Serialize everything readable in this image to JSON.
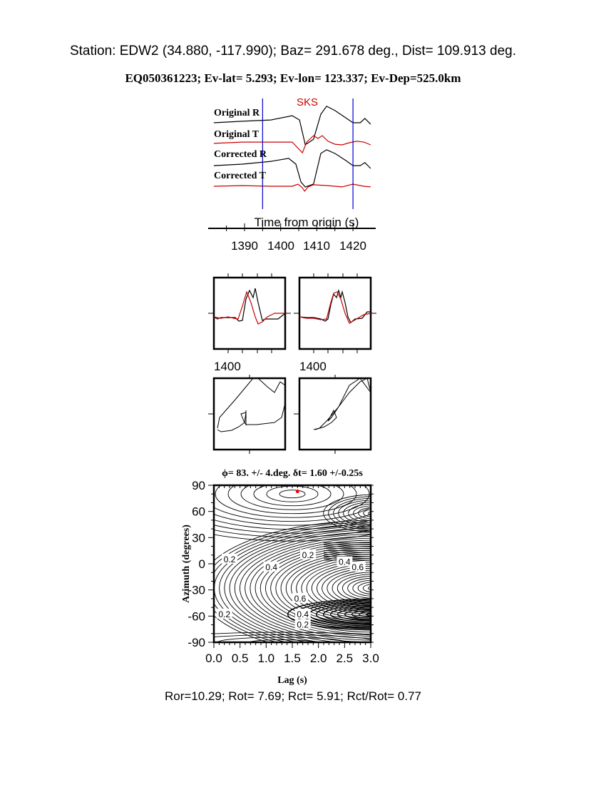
{
  "header": {
    "station_line": "Station: EDW2 (34.880, -117.990); Baz=  291.678 deg., Dist=  109.913 deg.",
    "event_line": "EQ050361223; Ev-lat=   5.293; Ev-lon= 123.337; Ev-Dep=525.0km"
  },
  "colors": {
    "black": "#000000",
    "red": "#cc0000",
    "blue": "#0000cc",
    "marker": "#ff0000"
  },
  "chart_data": [
    {
      "type": "line",
      "name_label": "SKS",
      "xlabel": "Time from origin (s)",
      "xticks": [
        "1390",
        "1400",
        "1410",
        "1420"
      ],
      "xlim": [
        1381.5,
        1425
      ],
      "window_markers": [
        1395,
        1420
      ],
      "series": [
        {
          "name": "Original R",
          "color": "#000000",
          "points": [
            [
              1381.5,
              0
            ],
            [
              1389.4,
              0.07
            ],
            [
              1397.3,
              0.13
            ],
            [
              1403.2,
              0.33
            ],
            [
              1405.2,
              0.13
            ],
            [
              1406.8,
              -1.03
            ],
            [
              1409.1,
              -0.77
            ],
            [
              1411.1,
              0.4
            ],
            [
              1412.7,
              0.77
            ],
            [
              1415,
              0.57
            ],
            [
              1418,
              0.23
            ],
            [
              1420,
              0
            ],
            [
              1422,
              0
            ],
            [
              1423.3,
              0.2
            ],
            [
              1424.9,
              -0.07
            ]
          ]
        },
        {
          "name": "Original T",
          "color": "#cc0000",
          "points": [
            [
              1381.5,
              -0.03
            ],
            [
              1389.4,
              0.03
            ],
            [
              1397.3,
              0.03
            ],
            [
              1403.2,
              0.03
            ],
            [
              1405.2,
              -0.33
            ],
            [
              1406,
              -0.47
            ],
            [
              1407.2,
              0.03
            ],
            [
              1409.1,
              0.33
            ],
            [
              1410.3,
              0.2
            ],
            [
              1411.5,
              0.33
            ],
            [
              1413.1,
              0.07
            ],
            [
              1415,
              -0.07
            ],
            [
              1417,
              -0.1
            ],
            [
              1419,
              0
            ],
            [
              1421,
              0.07
            ],
            [
              1423,
              0.03
            ],
            [
              1424.9,
              -0.1
            ]
          ]
        },
        {
          "name": "Corrected R",
          "color": "#000000",
          "points": [
            [
              1381.5,
              -0.07
            ],
            [
              1389.4,
              0
            ],
            [
              1397.3,
              0.13
            ],
            [
              1402.2,
              0.27
            ],
            [
              1404.2,
              0
            ],
            [
              1405.6,
              -0.83
            ],
            [
              1406.8,
              -1.07
            ],
            [
              1409.1,
              -0.93
            ],
            [
              1411.1,
              0.5
            ],
            [
              1412.7,
              0.67
            ],
            [
              1415,
              0.5
            ],
            [
              1418,
              0.17
            ],
            [
              1420,
              -0.07
            ],
            [
              1422,
              -0.07
            ],
            [
              1423.3,
              0.07
            ],
            [
              1424.9,
              -0.2
            ]
          ]
        },
        {
          "name": "Corrected T",
          "color": "#cc0000",
          "points": [
            [
              1381.5,
              0
            ],
            [
              1389.4,
              0.03
            ],
            [
              1397.3,
              0
            ],
            [
              1403.2,
              0
            ],
            [
              1404.8,
              0.1
            ],
            [
              1406,
              -0.07
            ],
            [
              1406.6,
              -0.23
            ],
            [
              1407.6,
              -0.03
            ],
            [
              1409.1,
              0.07
            ],
            [
              1413.1,
              0.03
            ],
            [
              1417,
              -0.03
            ],
            [
              1420,
              0.1
            ],
            [
              1423,
              0
            ],
            [
              1424.9,
              -0.03
            ]
          ]
        }
      ]
    },
    {
      "type": "line",
      "panel": "original-R-T-overlay",
      "xtick_label": "1400",
      "series": [
        {
          "color": "#000000",
          "points": [
            [
              0,
              -0.1
            ],
            [
              5,
              -0.16
            ],
            [
              10,
              -0.12
            ],
            [
              20,
              -0.12
            ],
            [
              30,
              -0.12
            ],
            [
              35,
              -0.22
            ],
            [
              40,
              -0.2
            ],
            [
              45,
              0.4
            ],
            [
              50,
              0.64
            ],
            [
              55,
              0.44
            ],
            [
              58,
              0.7
            ],
            [
              62,
              0.3
            ],
            [
              68,
              -0.2
            ],
            [
              72,
              -0.16
            ],
            [
              80,
              -0.16
            ],
            [
              90,
              -0.16
            ],
            [
              100,
              0
            ]
          ]
        },
        {
          "color": "#cc0000",
          "points": [
            [
              0,
              -0.1
            ],
            [
              10,
              -0.14
            ],
            [
              20,
              -0.1
            ],
            [
              28,
              -0.14
            ],
            [
              34,
              -0.16
            ],
            [
              40,
              0.2
            ],
            [
              46,
              0.6
            ],
            [
              52,
              0.3
            ],
            [
              58,
              -0.1
            ],
            [
              62,
              -0.3
            ],
            [
              68,
              -0.24
            ],
            [
              75,
              -0.1
            ],
            [
              85,
              0
            ],
            [
              100,
              0
            ]
          ]
        }
      ]
    },
    {
      "type": "line",
      "panel": "corrected-R-T-overlay",
      "xtick_label": "1400",
      "series": [
        {
          "color": "#000000",
          "points": [
            [
              0,
              -0.1
            ],
            [
              10,
              -0.12
            ],
            [
              20,
              -0.12
            ],
            [
              30,
              -0.16
            ],
            [
              36,
              -0.22
            ],
            [
              40,
              -0.16
            ],
            [
              44,
              0.24
            ],
            [
              48,
              0.54
            ],
            [
              52,
              0.44
            ],
            [
              55,
              0.64
            ],
            [
              58,
              0.44
            ],
            [
              60,
              0.6
            ],
            [
              64,
              0.3
            ],
            [
              68,
              -0.1
            ],
            [
              72,
              -0.26
            ],
            [
              78,
              -0.16
            ],
            [
              88,
              -0.14
            ],
            [
              95,
              0.04
            ],
            [
              100,
              0.04
            ]
          ]
        },
        {
          "color": "#cc0000",
          "points": [
            [
              0,
              -0.1
            ],
            [
              10,
              -0.14
            ],
            [
              20,
              -0.14
            ],
            [
              30,
              -0.18
            ],
            [
              38,
              -0.16
            ],
            [
              44,
              0.3
            ],
            [
              48,
              0.56
            ],
            [
              53,
              0.6
            ],
            [
              58,
              0.4
            ],
            [
              64,
              0
            ],
            [
              70,
              -0.28
            ],
            [
              80,
              -0.16
            ],
            [
              90,
              -0.04
            ],
            [
              100,
              0
            ]
          ]
        }
      ]
    },
    {
      "type": "scatter",
      "panel": "original-particle-motion",
      "points": [
        [
          -0.9,
          -0.4
        ],
        [
          -0.84,
          -0.1
        ],
        [
          -0.4,
          0.4
        ],
        [
          0.1,
          1
        ],
        [
          0.24,
          1
        ],
        [
          0.5,
          0.76
        ],
        [
          0.7,
          0.6
        ],
        [
          0.86,
          0.9
        ],
        [
          1,
          0.8
        ],
        [
          1,
          0.3
        ],
        [
          0.9,
          -0.1
        ],
        [
          0.7,
          -0.24
        ],
        [
          0.2,
          -0.3
        ],
        [
          -0.1,
          -0.3
        ],
        [
          -0.1,
          -0.2
        ],
        [
          -0.1,
          0.1
        ],
        [
          -0.1,
          -0.3
        ],
        [
          -0.16,
          -0.2
        ],
        [
          -0.24,
          0
        ],
        [
          -0.1,
          0.04
        ],
        [
          -0.14,
          -0.24
        ],
        [
          -0.3,
          -0.36
        ],
        [
          -0.5,
          -0.46
        ],
        [
          -0.8,
          -0.5
        ],
        [
          -0.9,
          -0.44
        ]
      ]
    },
    {
      "type": "scatter",
      "panel": "corrected-particle-motion",
      "points": [
        [
          -0.6,
          -0.44
        ],
        [
          -0.44,
          -0.4
        ],
        [
          -0.2,
          -0.16
        ],
        [
          0.1,
          0.2
        ],
        [
          0.4,
          0.8
        ],
        [
          0.7,
          1
        ],
        [
          1,
          0.6
        ],
        [
          0.9,
          1
        ],
        [
          0.7,
          0.9
        ],
        [
          0.4,
          0.6
        ],
        [
          0.1,
          0.2
        ],
        [
          -0.1,
          -0.1
        ],
        [
          -0.2,
          -0.2
        ],
        [
          -0.04,
          0.1
        ],
        [
          0.04,
          -0.1
        ],
        [
          -0.1,
          -0.24
        ],
        [
          -0.3,
          -0.36
        ],
        [
          -0.56,
          -0.44
        ]
      ]
    },
    {
      "type": "heatmap",
      "panel": "splitting-grid-search-contours",
      "title": "ϕ= 83. +/- 4.deg. δt= 1.60 +/-0.25s",
      "xlabel": "Lag (s)",
      "ylabel": "Azimuth (degrees)",
      "xlim": [
        0,
        3
      ],
      "ylim": [
        -90,
        90
      ],
      "xticks": [
        "0.0",
        "0.5",
        "1.0",
        "1.5",
        "2.0",
        "2.5",
        "3.0"
      ],
      "yticks": [
        "90",
        "60",
        "30",
        "0",
        "-30",
        "-60",
        "-90"
      ],
      "best_fit": {
        "lag": 1.6,
        "azimuth": 83
      },
      "contour_labels": [
        {
          "text": "0.2",
          "lag": 0.3,
          "azimuth": 5
        },
        {
          "text": "0.2",
          "lag": 1.8,
          "azimuth": 10
        },
        {
          "text": "0.4",
          "lag": 2.5,
          "azimuth": 2
        },
        {
          "text": "0.6",
          "lag": 2.75,
          "azimuth": -4
        },
        {
          "text": "0.4",
          "lag": 1.1,
          "azimuth": -4
        },
        {
          "text": "0.6",
          "lag": 1.65,
          "azimuth": -40
        },
        {
          "text": "0.4",
          "lag": 1.7,
          "azimuth": -58
        },
        {
          "text": "0.2",
          "lag": 1.7,
          "azimuth": -70
        },
        {
          "text": "0.2",
          "lag": 0.2,
          "azimuth": -58
        }
      ]
    }
  ],
  "footer": {
    "summary": "Ror=10.29; Rot= 7.69; Rct= 5.91; Rct/Rot= 0.77"
  }
}
